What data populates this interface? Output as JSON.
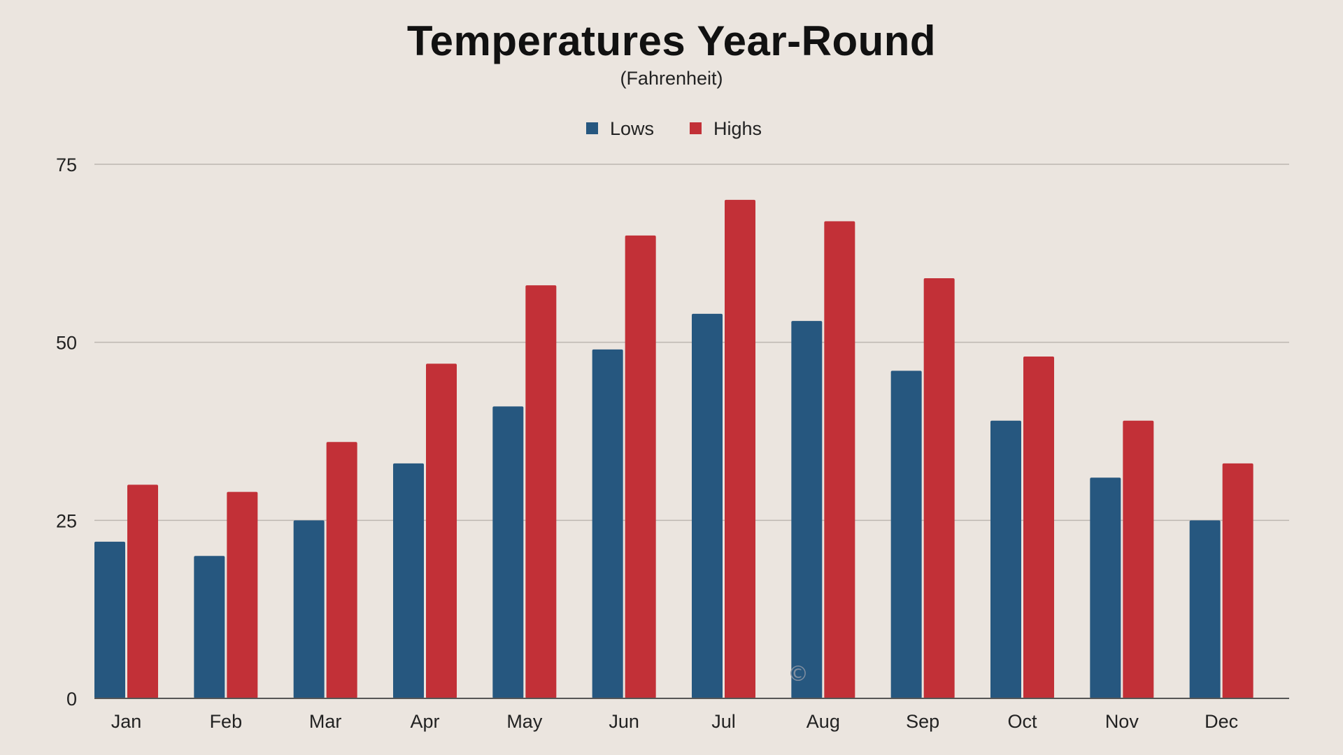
{
  "chart_data": {
    "type": "bar",
    "title": "Temperatures Year-Round",
    "subtitle": "(Fahrenheit)",
    "categories": [
      "Jan",
      "Feb",
      "Mar",
      "Apr",
      "May",
      "Jun",
      "Jul",
      "Aug",
      "Sep",
      "Oct",
      "Nov",
      "Dec"
    ],
    "series": [
      {
        "name": "Lows",
        "color": "#26577f",
        "values": [
          22,
          20,
          25,
          33,
          41,
          49,
          54,
          53,
          46,
          39,
          31,
          25
        ]
      },
      {
        "name": "Highs",
        "color": "#c23037",
        "values": [
          30,
          29,
          36,
          47,
          58,
          65,
          70,
          67,
          59,
          48,
          39,
          33
        ]
      }
    ],
    "ylim": [
      0,
      75
    ],
    "yticks": [
      0,
      25,
      50,
      75
    ],
    "grid": true,
    "legend_position": "top-center",
    "watermark": "©"
  }
}
